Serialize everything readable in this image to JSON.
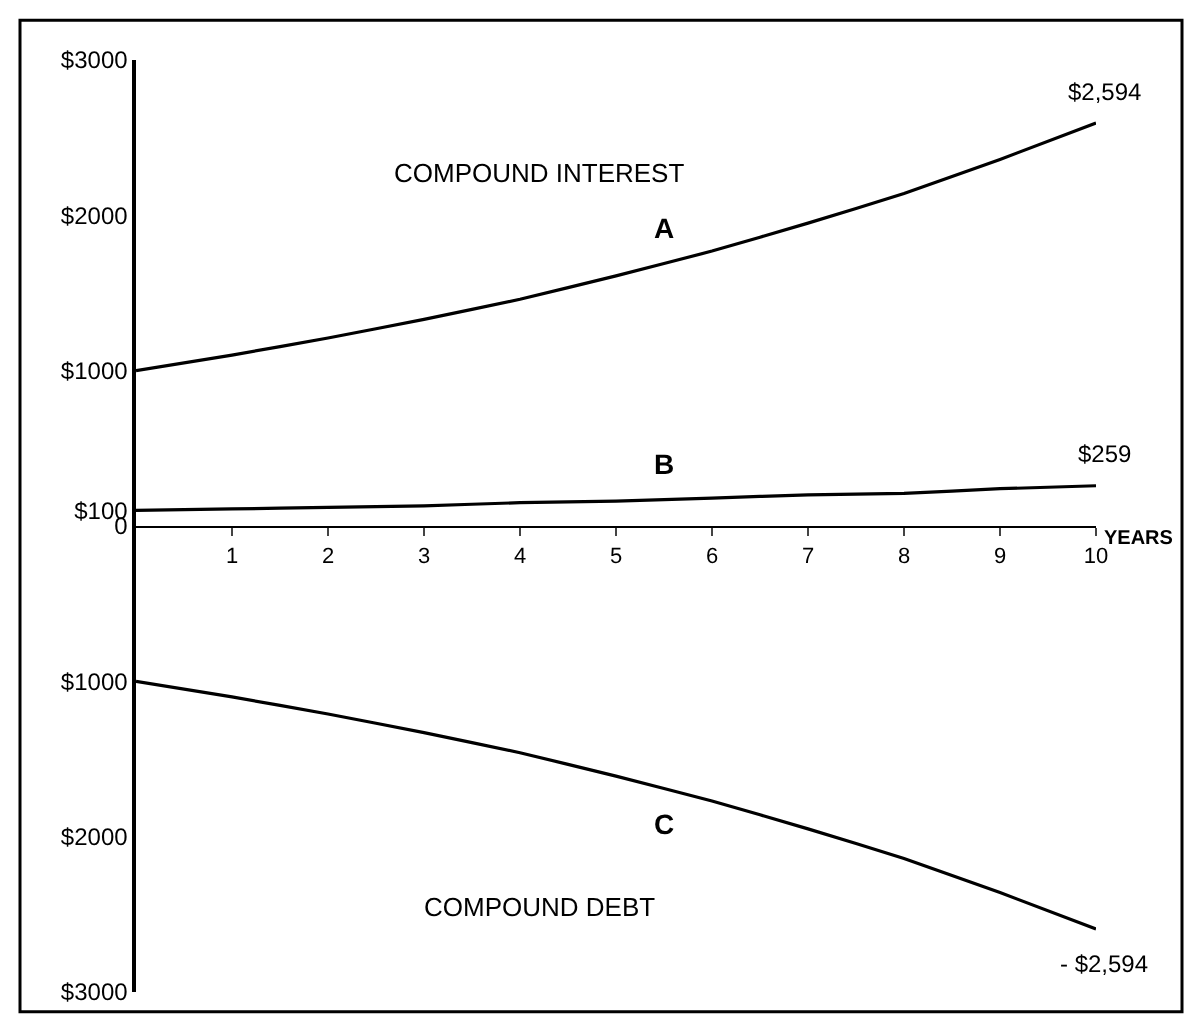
{
  "chart_data": {
    "type": "line",
    "x": [
      0,
      1,
      2,
      3,
      4,
      5,
      6,
      7,
      8,
      9,
      10
    ],
    "series": [
      {
        "name": "A",
        "color": "#000000",
        "values": [
          1000,
          1100,
          1210,
          1330,
          1460,
          1610,
          1770,
          1950,
          2140,
          2360,
          2594
        ],
        "value_labels": [
          null,
          null,
          null,
          null,
          null,
          null,
          null,
          null,
          null,
          null,
          "$2,594"
        ]
      },
      {
        "name": "B",
        "color": "#000000",
        "values": [
          100,
          110,
          120,
          130,
          150,
          160,
          180,
          200,
          210,
          240,
          259
        ],
        "value_labels": [
          null,
          null,
          null,
          null,
          null,
          null,
          null,
          null,
          null,
          null,
          "$259"
        ]
      },
      {
        "name": "C",
        "color": "#000000",
        "values": [
          -1000,
          -1100,
          -1210,
          -1330,
          -1460,
          -1610,
          -1770,
          -1950,
          -2140,
          -2360,
          -2594
        ],
        "value_labels": [
          null,
          null,
          null,
          null,
          null,
          null,
          null,
          null,
          null,
          null,
          "- $2,594"
        ]
      }
    ],
    "xlabel": "YEARS",
    "annotations": [
      "COMPOUND INTEREST",
      "COMPOUND DEBT"
    ],
    "xlim": [
      0,
      10
    ],
    "xticks": [
      1,
      2,
      3,
      4,
      5,
      6,
      7,
      8,
      9,
      10
    ],
    "ylim": [
      -3000,
      3000
    ],
    "yticks": [
      {
        "value": 3000,
        "label": "$3000"
      },
      {
        "value": 2000,
        "label": "$2000"
      },
      {
        "value": 1000,
        "label": "$1000"
      },
      {
        "value": 100,
        "label": "$100"
      },
      {
        "value": 0,
        "label": "0"
      },
      {
        "value": -1000,
        "label": "$1000"
      },
      {
        "value": -2000,
        "label": "$2000"
      },
      {
        "value": -3000,
        "label": "$3000"
      }
    ],
    "legend": false,
    "marker": "none",
    "line_style": "solid"
  }
}
